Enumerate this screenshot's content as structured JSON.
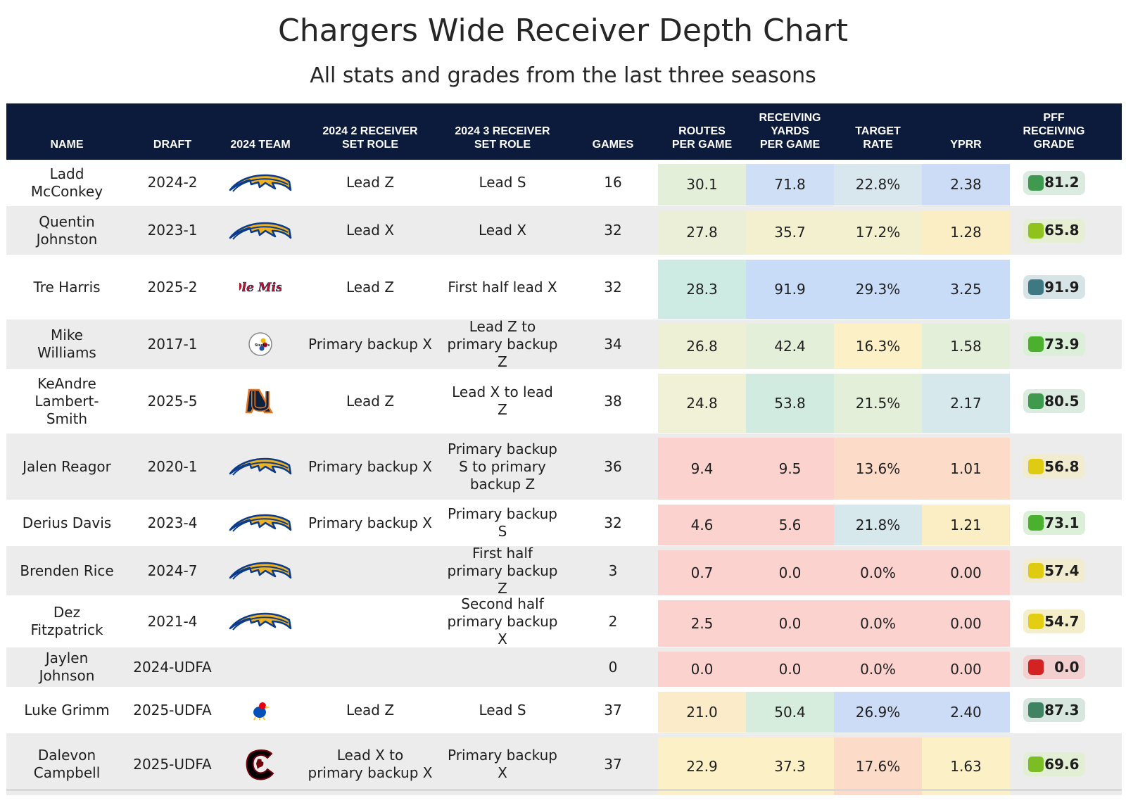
{
  "title": "Chargers Wide Receiver Depth Chart",
  "subtitle": "All stats and grades from the last three seasons",
  "headers": {
    "name": "NAME",
    "draft": "DRAFT",
    "team": "2024 TEAM",
    "role2_l1": "2024 2 RECEIVER",
    "role2_l2": "SET ROLE",
    "role3_l1": "2024 3 RECEIVER",
    "role3_l2": "SET ROLE",
    "games": "GAMES",
    "routes_l1": "ROUTES",
    "routes_l2": "PER GAME",
    "ryds_l1": "RECEIVING",
    "ryds_l2": "YARDS",
    "ryds_l3": "PER GAME",
    "target_l1": "TARGET",
    "target_l2": "RATE",
    "yprr": "YPRR",
    "grade_l1": "PFF",
    "grade_l2": "RECEIVING",
    "grade_l3": "GRADE"
  },
  "colors": {
    "header_bg": "#0c1a3c",
    "row_alt": "#ececec"
  },
  "chart_data": {
    "type": "table",
    "columns": [
      "NAME",
      "DRAFT",
      "2024 TEAM",
      "2024 2 RECEIVER SET ROLE",
      "2024 3 RECEIVER SET ROLE",
      "GAMES",
      "ROUTES PER GAME",
      "RECEIVING YARDS PER GAME",
      "TARGET RATE",
      "YPRR",
      "PFF RECEIVING GRADE"
    ],
    "rows": [
      {
        "name": "Ladd McConkey",
        "draft": "2024-2",
        "team_logo": "chargers-bolt",
        "role2": "Lead Z",
        "role3": "Lead S",
        "games": "16",
        "routes": "30.1",
        "ryds": "71.8",
        "target": "22.8%",
        "yprr": "2.38",
        "grade": "81.2",
        "routes_c": "#e4efda",
        "ryds_c": "#cfe0f6",
        "target_c": "#d8e6ee",
        "yprr_c": "#cddcf6",
        "grade_c": "#3f9a50",
        "grade_bg": "#dcebdf"
      },
      {
        "name": "Quentin Johnston",
        "draft": "2023-1",
        "team_logo": "chargers-bolt",
        "role2": "Lead X",
        "role3": "Lead X",
        "games": "32",
        "routes": "27.8",
        "ryds": "35.7",
        "target": "17.2%",
        "yprr": "1.28",
        "grade": "65.8",
        "routes_c": "#ecefd7",
        "ryds_c": "#f3f0cf",
        "target_c": "#f3f0cf",
        "yprr_c": "#fbeec5",
        "grade_c": "#8ec31e",
        "grade_bg": "#e6efd4"
      },
      {
        "name": "Tre Harris",
        "draft": "2025-2",
        "team_logo": "ole-miss",
        "role2": "Lead Z",
        "role3": "First half lead X",
        "games": "32",
        "routes": "28.3",
        "ryds": "91.9",
        "target": "29.3%",
        "yprr": "3.25",
        "grade": "91.9",
        "routes_c": "#cdebe2",
        "ryds_c": "#c8dcf8",
        "target_c": "#c8dcf8",
        "yprr_c": "#c8dcf8",
        "grade_c": "#3d7883",
        "grade_bg": "#d6e4e7"
      },
      {
        "name": "Mike Williams",
        "draft": "2017-1",
        "team_logo": "steelers",
        "role2": "Primary backup X",
        "role3": "Lead Z to primary backup Z",
        "games": "34",
        "routes": "26.8",
        "ryds": "42.4",
        "target": "16.3%",
        "yprr": "1.58",
        "grade": "73.9",
        "routes_c": "#eef0d6",
        "ryds_c": "#e4efda",
        "target_c": "#fbf0c6",
        "yprr_c": "#e4efda",
        "grade_c": "#4bb02e",
        "grade_bg": "#dcefd8"
      },
      {
        "name": "KeAndre Lambert-Smith",
        "draft": "2025-5",
        "team_logo": "auburn",
        "role2": "Lead Z",
        "role3": "Lead X to lead Z",
        "games": "38",
        "routes": "24.8",
        "ryds": "53.8",
        "target": "21.5%",
        "yprr": "2.17",
        "grade": "80.5",
        "routes_c": "#f0f1d6",
        "ryds_c": "#d2ebe0",
        "target_c": "#e4efda",
        "yprr_c": "#d6e8ec",
        "grade_c": "#3f9a50",
        "grade_bg": "#dcebdf"
      },
      {
        "name": "Jalen Reagor",
        "draft": "2020-1",
        "team_logo": "chargers-bolt",
        "role2": "Primary backup X",
        "role3": "Primary backup S to primary backup Z",
        "games": "36",
        "routes": "9.4",
        "ryds": "9.5",
        "target": "13.6%",
        "yprr": "1.01",
        "grade": "56.8",
        "routes_c": "#fcd2cf",
        "ryds_c": "#fcd2cf",
        "target_c": "#fcdcc9",
        "yprr_c": "#fcdcc9",
        "grade_c": "#dfcc12",
        "grade_bg": "#f1ecd0"
      },
      {
        "name": "Derius Davis",
        "draft": "2023-4",
        "team_logo": "chargers-bolt",
        "role2": "Primary backup X",
        "role3": "Primary backup S",
        "games": "32",
        "routes": "4.6",
        "ryds": "5.6",
        "target": "21.8%",
        "yprr": "1.21",
        "grade": "73.1",
        "routes_c": "#fcd2cf",
        "ryds_c": "#fcd2cf",
        "target_c": "#d6e8ec",
        "yprr_c": "#fbeec5",
        "grade_c": "#4bb02e",
        "grade_bg": "#dcefd8"
      },
      {
        "name": "Brenden Rice",
        "draft": "2024-7",
        "team_logo": "chargers-bolt",
        "role2": "",
        "role3": "First half primary backup Z",
        "games": "3",
        "routes": "0.7",
        "ryds": "0.0",
        "target": "0.0%",
        "yprr": "0.00",
        "grade": "57.4",
        "routes_c": "#fcd2cf",
        "ryds_c": "#fcd2cf",
        "target_c": "#fcd2cf",
        "yprr_c": "#fcd2cf",
        "grade_c": "#dfcc12",
        "grade_bg": "#f1ecd0"
      },
      {
        "name": "Dez Fitzpatrick",
        "draft": "2021-4",
        "team_logo": "chargers-bolt",
        "role2": "",
        "role3": "Second half primary backup X",
        "games": "2",
        "routes": "2.5",
        "ryds": "0.0",
        "target": "0.0%",
        "yprr": "0.00",
        "grade": "54.7",
        "routes_c": "#fcd2cf",
        "ryds_c": "#fcd2cf",
        "target_c": "#fcd2cf",
        "yprr_c": "#fcd2cf",
        "grade_c": "#e3ce12",
        "grade_bg": "#f4eecb"
      },
      {
        "name": "Jaylen Johnson",
        "draft": "2024-UDFA",
        "team_logo": "",
        "role2": "",
        "role3": "",
        "games": "0",
        "routes": "0.0",
        "ryds": "0.0",
        "target": "0.0%",
        "yprr": "0.00",
        "grade": "0.0",
        "routes_c": "#fcd2cf",
        "ryds_c": "#fcd2cf",
        "target_c": "#fcd2cf",
        "yprr_c": "#fcd2cf",
        "grade_c": "#d42121",
        "grade_bg": "#f3cfcf"
      },
      {
        "name": "Luke Grimm",
        "draft": "2025-UDFA",
        "team_logo": "kansas",
        "role2": "Lead Z",
        "role3": "Lead S",
        "games": "37",
        "routes": "21.0",
        "ryds": "50.4",
        "target": "26.9%",
        "yprr": "2.40",
        "grade": "87.3",
        "routes_c": "#fcebc9",
        "ryds_c": "#d6ecdc",
        "target_c": "#cddcf6",
        "yprr_c": "#cddcf6",
        "grade_c": "#3f8363",
        "grade_bg": "#d8e6e0"
      },
      {
        "name": "Dalevon Campbell",
        "draft": "2025-UDFA",
        "team_logo": "south-carolina",
        "role2": "Lead X to primary backup X",
        "role3": "Primary backup X",
        "games": "37",
        "routes": "22.9",
        "ryds": "37.3",
        "target": "17.6%",
        "yprr": "1.63",
        "grade": "69.6",
        "routes_c": "#fbf0c6",
        "ryds_c": "#fbf0c6",
        "target_c": "#fcdcc9",
        "yprr_c": "#fbf0c6",
        "grade_c": "#7cbd26",
        "grade_bg": "#e2efd4"
      }
    ]
  }
}
